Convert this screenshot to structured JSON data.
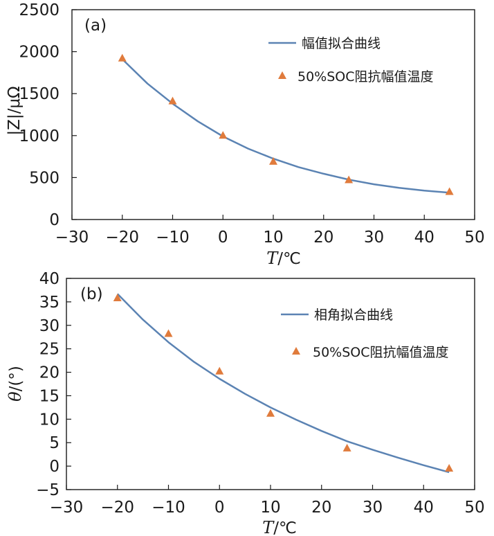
{
  "colors": {
    "line": "#5b83b3",
    "marker": "#e07b3c",
    "axis": "#1a1a1a"
  },
  "chart_data": [
    {
      "type": "line",
      "panel_label": "(a)",
      "xlabel_italic": "T",
      "xlabel_rest": "/℃",
      "ylabel": "|Z|/μΩ",
      "xlim": [
        -30,
        50
      ],
      "ylim": [
        0,
        2500
      ],
      "xticks": [
        "−30",
        "−20",
        "−10",
        "0",
        "10",
        "20",
        "30",
        "40",
        "50"
      ],
      "xtick_values": [
        -30,
        -20,
        -10,
        0,
        10,
        20,
        30,
        40,
        50
      ],
      "yticks": [
        "0",
        "500",
        "1000",
        "1500",
        "2000",
        "2500"
      ],
      "ytick_values": [
        0,
        500,
        1000,
        1500,
        2000,
        2500
      ],
      "legend": {
        "position": "top-right",
        "fit_label": "幅值拟合曲线",
        "marker_label": "50%SOC阻抗幅值温度"
      },
      "series": [
        {
          "name": "幅值拟合曲线",
          "kind": "line",
          "x": [
            -20,
            -15,
            -10,
            -5,
            0,
            5,
            10,
            15,
            20,
            25,
            30,
            35,
            40,
            45
          ],
          "y": [
            1910,
            1620,
            1380,
            1170,
            990,
            845,
            725,
            625,
            545,
            475,
            420,
            378,
            345,
            320
          ]
        },
        {
          "name": "50%SOC阻抗幅值温度",
          "kind": "marker",
          "x": [
            -20,
            -10,
            0,
            10,
            25,
            45
          ],
          "y": [
            1920,
            1410,
            1000,
            690,
            470,
            330
          ]
        }
      ]
    },
    {
      "type": "line",
      "panel_label": "(b)",
      "xlabel_italic": "T",
      "xlabel_rest": "/℃",
      "ylabel_italic": "θ",
      "ylabel_rest": "/(°)",
      "xlim": [
        -30,
        50
      ],
      "ylim": [
        -5,
        40
      ],
      "xticks": [
        "−30",
        "−20",
        "−10",
        "0",
        "10",
        "20",
        "30",
        "40",
        "50"
      ],
      "xtick_values": [
        -30,
        -20,
        -10,
        0,
        10,
        20,
        30,
        40,
        50
      ],
      "yticks": [
        "−5",
        "0",
        "5",
        "10",
        "15",
        "20",
        "25",
        "30",
        "35",
        "40"
      ],
      "ytick_values": [
        -5,
        0,
        5,
        10,
        15,
        20,
        25,
        30,
        35,
        40
      ],
      "legend": {
        "position": "top-right",
        "fit_label": "相角拟合曲线",
        "marker_label": "50%SOC阻抗幅值温度"
      },
      "series": [
        {
          "name": "相角拟合曲线",
          "kind": "line",
          "x": [
            -20,
            -15,
            -10,
            -5,
            0,
            5,
            10,
            15,
            20,
            25,
            30,
            35,
            40,
            45
          ],
          "y": [
            36.7,
            31.2,
            26.4,
            22.2,
            18.6,
            15.4,
            12.5,
            9.9,
            7.5,
            5.3,
            3.5,
            1.8,
            0.2,
            -1.3
          ]
        },
        {
          "name": "50%SOC阻抗幅值温度",
          "kind": "marker",
          "x": [
            -20,
            -10,
            0,
            10,
            25,
            45
          ],
          "y": [
            35.8,
            28.2,
            20.2,
            11.2,
            3.8,
            -0.5
          ]
        }
      ]
    }
  ]
}
